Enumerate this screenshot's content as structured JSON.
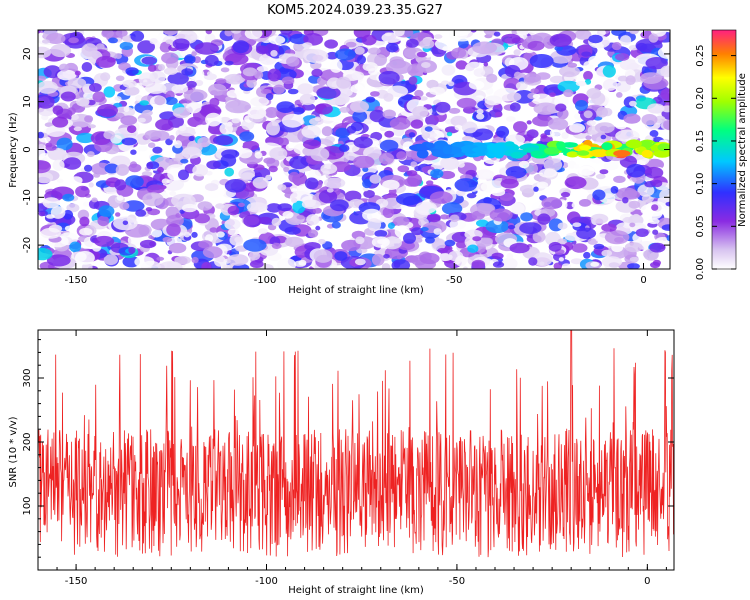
{
  "title": "KOM5.2024.039.23.35.G27",
  "chart_data": [
    {
      "type": "heatmap",
      "xlabel": "Height of straight line (km)",
      "ylabel": "Frequency (Hz)",
      "xlim": [
        -160,
        7
      ],
      "ylim": [
        -25,
        25
      ],
      "xticks": [
        "-150",
        "-100",
        "-50",
        "0"
      ],
      "yticks": [
        "-20",
        "-10",
        "0",
        "10",
        "20"
      ],
      "colorbar": {
        "label": "Normalized spectral amplitude",
        "range": [
          0.0,
          0.28
        ],
        "ticks": [
          "0.00",
          "0.05",
          "0.10",
          "0.15",
          "0.20",
          "0.25"
        ]
      },
      "ridge": {
        "frequency_hz": 0,
        "from_km": -60,
        "to_km": 7,
        "peak_km": -10,
        "peak_value": 0.27
      },
      "background_value_range": [
        0.0,
        0.1
      ]
    },
    {
      "type": "line",
      "xlabel": "Height of straight line (km)",
      "ylabel": "SNR (10 * v/v)",
      "xlim": [
        -160,
        7
      ],
      "ylim": [
        0,
        375
      ],
      "xticks": [
        "-150",
        "-100",
        "-50",
        "0"
      ],
      "yticks": [
        "100",
        "200",
        "300"
      ],
      "series": [
        {
          "color": "#ee2222",
          "typical_range": [
            20,
            220
          ],
          "max": 375,
          "max_at_km": -20
        }
      ]
    }
  ]
}
